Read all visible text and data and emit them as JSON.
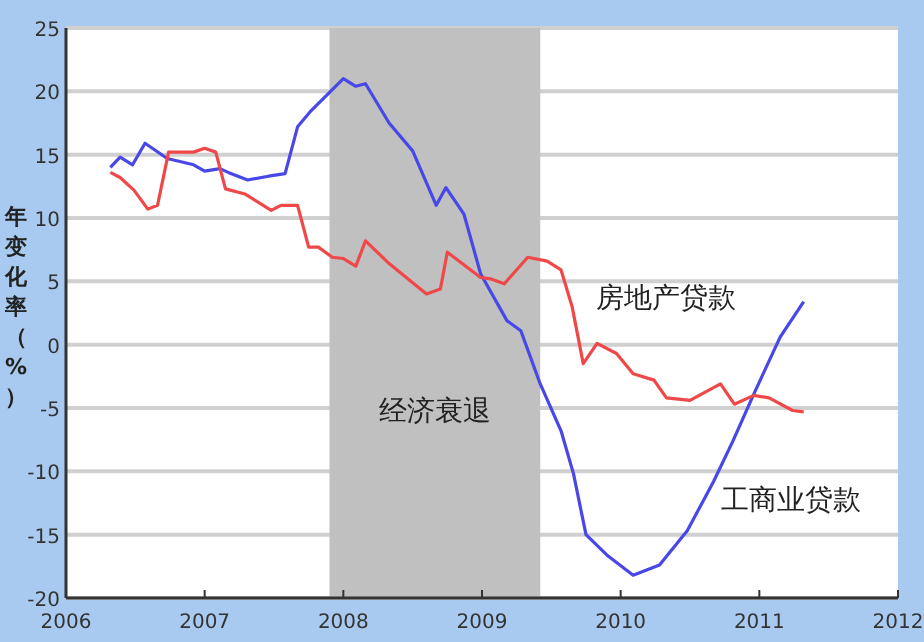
{
  "chart_data": {
    "type": "line",
    "ylabel": "年变化率（%）",
    "xlim": [
      2006,
      2012
    ],
    "ylim": [
      -20,
      25
    ],
    "xticks": [
      2006,
      2007,
      2008,
      2009,
      2010,
      2011,
      2012
    ],
    "yticks": [
      -20,
      -15,
      -10,
      -5,
      0,
      5,
      10,
      15,
      20,
      25
    ],
    "grid": "y",
    "bands": [
      {
        "axis": "x",
        "from": 2007.9,
        "to": 2009.42,
        "label": "经济衰退",
        "color": "#c0c0c0"
      }
    ],
    "series": [
      {
        "name": "工商业贷款",
        "color": "#4848e8",
        "x": [
          2006.32,
          2006.39,
          2006.48,
          2006.57,
          2006.73,
          2006.92,
          2007.0,
          2007.11,
          2007.17,
          2007.31,
          2007.46,
          2007.58,
          2007.67,
          2007.77,
          2007.89,
          2008.0,
          2008.09,
          2008.16,
          2008.33,
          2008.5,
          2008.67,
          2008.74,
          2008.87,
          2008.99,
          2009.18,
          2009.28,
          2009.42,
          2009.57,
          2009.66,
          2009.75,
          2009.9,
          2010.09,
          2010.28,
          2010.48,
          2010.67,
          2010.81,
          2010.96,
          2011.15,
          2011.32
        ],
        "values": [
          14.0,
          14.8,
          14.2,
          15.9,
          14.7,
          14.2,
          13.7,
          13.9,
          13.6,
          13.0,
          13.3,
          13.5,
          17.2,
          18.5,
          19.8,
          21.0,
          20.4,
          20.6,
          17.5,
          15.3,
          11.0,
          12.4,
          10.3,
          5.6,
          1.9,
          1.1,
          -3.1,
          -6.8,
          -10.2,
          -15.0,
          -16.6,
          -18.2,
          -17.4,
          -14.7,
          -10.8,
          -7.6,
          -3.9,
          0.6,
          3.4
        ]
      },
      {
        "name": "房地产贷款",
        "color": "#f04848",
        "x": [
          2006.32,
          2006.39,
          2006.49,
          2006.59,
          2006.66,
          2006.74,
          2006.92,
          2007.0,
          2007.08,
          2007.15,
          2007.29,
          2007.48,
          2007.55,
          2007.67,
          2007.75,
          2007.82,
          2007.92,
          2008.0,
          2008.09,
          2008.16,
          2008.33,
          2008.6,
          2008.7,
          2008.75,
          2008.99,
          2009.06,
          2009.16,
          2009.33,
          2009.47,
          2009.57,
          2009.65,
          2009.73,
          2009.83,
          2009.97,
          2010.09,
          2010.24,
          2010.33,
          2010.5,
          2010.72,
          2010.82,
          2010.96,
          2011.07,
          2011.24,
          2011.32
        ],
        "values": [
          13.6,
          13.2,
          12.2,
          10.7,
          11.0,
          15.2,
          15.2,
          15.5,
          15.2,
          12.3,
          11.9,
          10.6,
          11.0,
          11.0,
          7.7,
          7.7,
          6.9,
          6.8,
          6.2,
          8.2,
          6.4,
          4.0,
          4.4,
          7.3,
          5.3,
          5.2,
          4.8,
          6.9,
          6.6,
          5.9,
          3.0,
          -1.5,
          0.1,
          -0.7,
          -2.3,
          -2.8,
          -4.2,
          -4.4,
          -3.1,
          -4.7,
          -4.0,
          -4.2,
          -5.2,
          -5.3
        ]
      }
    ]
  }
}
